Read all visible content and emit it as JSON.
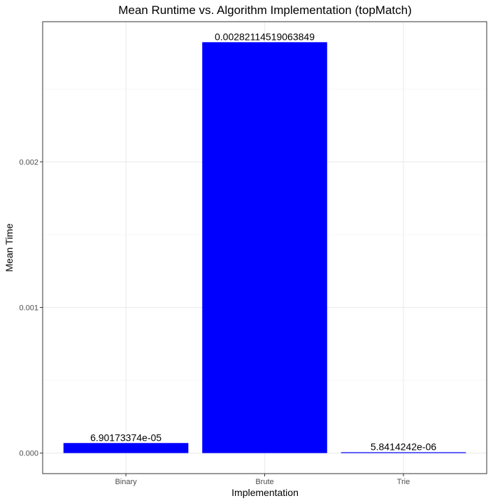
{
  "chart_data": {
    "type": "bar",
    "title": "Mean Runtime vs. Algorithm Implementation (topMatch)",
    "xlabel": "Implementation",
    "ylabel": "Mean Time",
    "categories": [
      "Binary",
      "Brute",
      "Trie"
    ],
    "values": [
      6.90173374e-05,
      0.00282114519063849,
      5.8414242e-06
    ],
    "data_labels": [
      "6.90173374e-05",
      "0.00282114519063849",
      "5.8414242e-06"
    ],
    "ylim": [
      -0.000141,
      0.002962
    ],
    "yticks": [
      0,
      0.001,
      0.002
    ],
    "ytick_labels": [
      "0.000",
      "0.001",
      "0.002"
    ],
    "grid": true,
    "bar_color": "#0000ff"
  }
}
